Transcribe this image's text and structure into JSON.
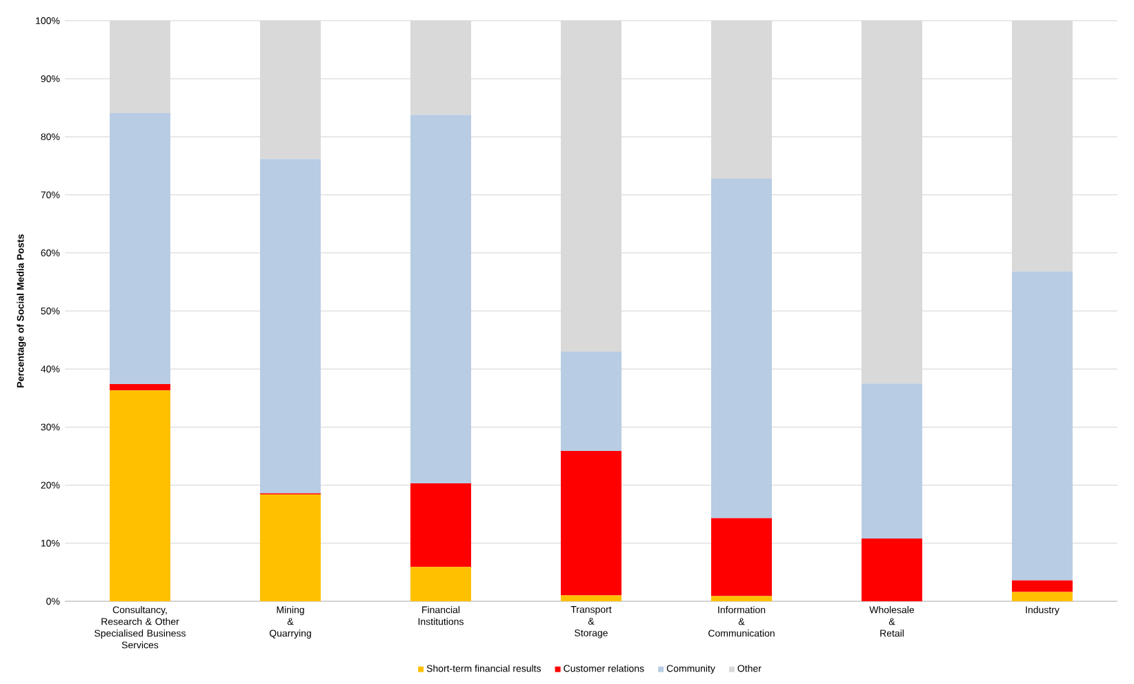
{
  "chart_data": {
    "type": "bar",
    "stacked": true,
    "ylabel": "Percentage of Social Media Posts",
    "categories": [
      "Consultancy,\nResearch & Other\nSpecialised Business\nServices",
      "Mining\n&\nQuarrying",
      "Financial\nInstitutions",
      "Transport\n&\nStorage",
      "Information\n&\nCommunication",
      "Wholesale\n&\nRetail",
      "Industry"
    ],
    "series": [
      {
        "name": "Short-term financial results",
        "color": "#ffc000",
        "values": [
          36.3,
          18.4,
          5.9,
          1.0,
          0.9,
          0,
          1.6
        ]
      },
      {
        "name": "Customer relations",
        "color": "#ff0000",
        "values": [
          1.1,
          0.2,
          14.4,
          24.9,
          13.4,
          10.8,
          2.0
        ]
      },
      {
        "name": "Community",
        "color": "#b8cce4",
        "values": [
          46.7,
          57.6,
          63.5,
          17.1,
          58.5,
          26.7,
          53.2
        ]
      },
      {
        "name": "Other",
        "color": "#d9d9d9",
        "values": [
          15.9,
          23.8,
          16.2,
          57.0,
          27.2,
          62.5,
          43.2
        ]
      }
    ],
    "ylim": [
      0,
      100
    ],
    "yticks": [
      {
        "value": 0,
        "label": "0%"
      },
      {
        "value": 10,
        "label": "10%"
      },
      {
        "value": 20,
        "label": "20%"
      },
      {
        "value": 30,
        "label": "30%"
      },
      {
        "value": 40,
        "label": "40%"
      },
      {
        "value": 50,
        "label": "50%"
      },
      {
        "value": 60,
        "label": "60%"
      },
      {
        "value": 70,
        "label": "70%"
      },
      {
        "value": 80,
        "label": "80%"
      },
      {
        "value": 90,
        "label": "90%"
      },
      {
        "value": 100,
        "label": "100%"
      }
    ],
    "grid": "y",
    "legend": "bottom"
  }
}
